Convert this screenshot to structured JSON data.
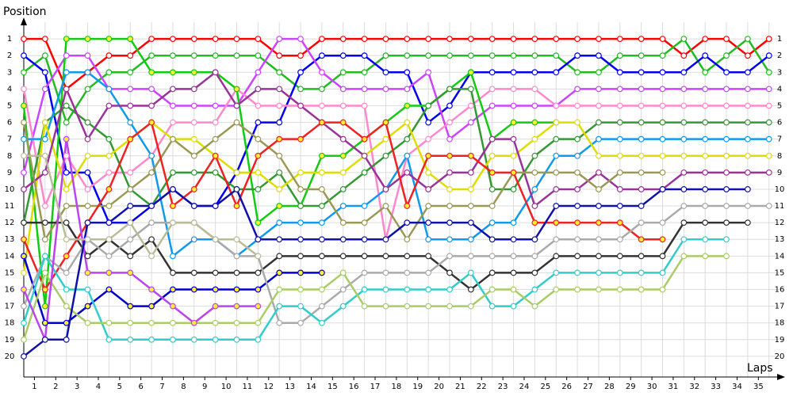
{
  "chart_data": {
    "type": "line",
    "y_label": "Position",
    "x_label": "Laps",
    "x": [
      0,
      1,
      2,
      3,
      4,
      5,
      6,
      7,
      8,
      9,
      10,
      11,
      12,
      13,
      14,
      15,
      16,
      17,
      18,
      19,
      20,
      21,
      22,
      23,
      24,
      25,
      26,
      27,
      28,
      29,
      30,
      31,
      32,
      33,
      34,
      35
    ],
    "xlim": [
      0,
      35.5
    ],
    "xticks": [
      {
        "value": 0.5,
        "label": "1"
      },
      {
        "value": 1.5,
        "label": "2"
      },
      {
        "value": 2.5,
        "label": "3"
      },
      {
        "value": 3.5,
        "label": "4"
      },
      {
        "value": 4.5,
        "label": "5"
      },
      {
        "value": 5.5,
        "label": "6"
      },
      {
        "value": 6.5,
        "label": "7"
      },
      {
        "value": 7.5,
        "label": "8"
      },
      {
        "value": 8.5,
        "label": "9"
      },
      {
        "value": 9.5,
        "label": "10"
      },
      {
        "value": 10.5,
        "label": "11"
      },
      {
        "value": 11.5,
        "label": "12"
      },
      {
        "value": 12.5,
        "label": "13"
      },
      {
        "value": 13.5,
        "label": "14"
      },
      {
        "value": 14.5,
        "label": "15"
      },
      {
        "value": 15.5,
        "label": "16"
      },
      {
        "value": 16.5,
        "label": "17"
      },
      {
        "value": 17.5,
        "label": "18"
      },
      {
        "value": 18.5,
        "label": "19"
      },
      {
        "value": 19.5,
        "label": "20"
      },
      {
        "value": 20.5,
        "label": "21"
      },
      {
        "value": 21.5,
        "label": "22"
      },
      {
        "value": 22.5,
        "label": "23"
      },
      {
        "value": 23.5,
        "label": "24"
      },
      {
        "value": 24.5,
        "label": "25"
      },
      {
        "value": 25.5,
        "label": "26"
      },
      {
        "value": 26.5,
        "label": "27"
      },
      {
        "value": 27.5,
        "label": "28"
      },
      {
        "value": 28.5,
        "label": "29"
      },
      {
        "value": 29.5,
        "label": "30"
      },
      {
        "value": 30.5,
        "label": "31"
      },
      {
        "value": 31.5,
        "label": "32"
      },
      {
        "value": 32.5,
        "label": "33"
      },
      {
        "value": 33.5,
        "label": "34"
      },
      {
        "value": 34.5,
        "label": "35"
      }
    ],
    "ylim": [
      21,
      0
    ],
    "yticks": [
      1,
      2,
      3,
      4,
      5,
      6,
      7,
      8,
      9,
      10,
      11,
      12,
      13,
      14,
      15,
      16,
      17,
      18,
      19,
      20
    ],
    "grid": true,
    "series": [
      {
        "color": "#ff0000",
        "marker_color": "#ffffff",
        "values": [
          1,
          1,
          4,
          3,
          2,
          2,
          1,
          1,
          1,
          1,
          1,
          1,
          2,
          2,
          1,
          1,
          1,
          1,
          1,
          1,
          1,
          1,
          1,
          1,
          1,
          1,
          1,
          1,
          1,
          1,
          1,
          2,
          1,
          1,
          2,
          1
        ]
      },
      {
        "color": "#22bb22",
        "marker_color": "#ffffff",
        "values": [
          3,
          2,
          6,
          4,
          3,
          3,
          2,
          2,
          2,
          2,
          2,
          2,
          3,
          4,
          4,
          3,
          3,
          2,
          2,
          2,
          2,
          2,
          2,
          2,
          2,
          2,
          3,
          3,
          2,
          2,
          2,
          1,
          3,
          2,
          1,
          3
        ]
      },
      {
        "color": "#0000ee",
        "marker_color": "#ffffff",
        "values": [
          2,
          3,
          9,
          9,
          12,
          12,
          11,
          10,
          11,
          11,
          9,
          6,
          6,
          3,
          2,
          2,
          2,
          3,
          3,
          6,
          5,
          3,
          3,
          3,
          3,
          3,
          2,
          2,
          3,
          3,
          3,
          3,
          2,
          3,
          3,
          2
        ]
      },
      {
        "color": "#cc44ff",
        "marker_color": "#ffffff",
        "values": [
          9,
          4,
          2,
          2,
          4,
          4,
          4,
          5,
          5,
          5,
          5,
          3,
          1,
          1,
          3,
          4,
          4,
          4,
          4,
          3,
          7,
          6,
          5,
          5,
          5,
          5,
          4,
          4,
          4,
          4,
          4,
          4,
          4,
          4,
          4,
          4
        ]
      },
      {
        "color": "#ff88cc",
        "marker_color": "#ffffff",
        "values": [
          4,
          11,
          8,
          10,
          9,
          9,
          8,
          6,
          6,
          6,
          4,
          5,
          5,
          5,
          5,
          5,
          5,
          13,
          8,
          7,
          6,
          5,
          4,
          4,
          4,
          5,
          5,
          5,
          5,
          5,
          5,
          5,
          5,
          5,
          5,
          5
        ]
      },
      {
        "color": "#11cc11",
        "marker_color": "#ffee33",
        "values": [
          5,
          17,
          1,
          1,
          1,
          1,
          3,
          3,
          3,
          3,
          4,
          12,
          11,
          11,
          8,
          8,
          7,
          6,
          5,
          5,
          4,
          3,
          7,
          6,
          6,
          6,
          null,
          null,
          null,
          null,
          null,
          null,
          null,
          null,
          null,
          null
        ]
      },
      {
        "color": "#339933",
        "marker_color": "#ffffff",
        "values": [
          12,
          6,
          5,
          6,
          7,
          10,
          11,
          9,
          9,
          9,
          10,
          10,
          9,
          11,
          11,
          10,
          9,
          8,
          7,
          5,
          4,
          4,
          10,
          10,
          8,
          7,
          7,
          6,
          6,
          6,
          6,
          6,
          6,
          6,
          6,
          6
        ]
      },
      {
        "color": "#1199ee",
        "marker_color": "#ffffff",
        "values": [
          7,
          7,
          3,
          3,
          4,
          6,
          8,
          14,
          13,
          13,
          14,
          13,
          12,
          12,
          12,
          11,
          11,
          10,
          8,
          13,
          13,
          13,
          12,
          12,
          10,
          8,
          8,
          7,
          7,
          7,
          7,
          7,
          7,
          7,
          7,
          7
        ]
      },
      {
        "color": "#dddd00",
        "marker_color": "#ffffff",
        "values": [
          15,
          6,
          10,
          8,
          8,
          7,
          6,
          7,
          7,
          8,
          9,
          9,
          10,
          9,
          9,
          9,
          8,
          7,
          6,
          9,
          10,
          10,
          8,
          8,
          7,
          6,
          6,
          8,
          8,
          8,
          8,
          8,
          8,
          8,
          8,
          8
        ]
      },
      {
        "color": "#993399",
        "marker_color": "#ffffff",
        "values": [
          10,
          9,
          4,
          7,
          5,
          5,
          5,
          4,
          4,
          3,
          5,
          4,
          4,
          5,
          6,
          7,
          8,
          10,
          9,
          10,
          9,
          9,
          7,
          7,
          11,
          10,
          10,
          9,
          10,
          10,
          10,
          9,
          9,
          9,
          9,
          9
        ]
      },
      {
        "color": "#999955",
        "marker_color": "#ffffff",
        "values": [
          6,
          13,
          11,
          11,
          11,
          10,
          9,
          7,
          8,
          7,
          6,
          7,
          8,
          10,
          10,
          12,
          12,
          11,
          13,
          11,
          11,
          11,
          11,
          9,
          9,
          9,
          9,
          10,
          9,
          9,
          9,
          null,
          null,
          null,
          null,
          null
        ]
      },
      {
        "color": "#ee2222",
        "marker_color": "#ffee33",
        "values": [
          13,
          16,
          14,
          12,
          10,
          7,
          6,
          11,
          10,
          8,
          11,
          8,
          7,
          7,
          6,
          6,
          7,
          6,
          11,
          8,
          8,
          8,
          9,
          9,
          12,
          12,
          12,
          12,
          12,
          13,
          13,
          null,
          null,
          null,
          null,
          null
        ]
      },
      {
        "color": "#0000cc",
        "marker_color": "#ffee33",
        "values": [
          14,
          18,
          18,
          17,
          16,
          17,
          17,
          16,
          16,
          16,
          16,
          16,
          15,
          15,
          15,
          null,
          null,
          null,
          null,
          null,
          null,
          null,
          null,
          null,
          null,
          null,
          null,
          null,
          null,
          null,
          null,
          null,
          null,
          null,
          null,
          null
        ]
      },
      {
        "color": "#333333",
        "marker_color": "#ffffff",
        "values": [
          12,
          12,
          12,
          14,
          13,
          14,
          13,
          15,
          15,
          15,
          15,
          15,
          14,
          14,
          14,
          14,
          14,
          14,
          14,
          14,
          15,
          16,
          15,
          15,
          15,
          14,
          14,
          14,
          14,
          14,
          14,
          12,
          12,
          12,
          12,
          null
        ]
      },
      {
        "color": "#aaaaaa",
        "marker_color": "#ffffff",
        "values": [
          17,
          14,
          15,
          13,
          14,
          13,
          12,
          12,
          12,
          13,
          14,
          14,
          18,
          18,
          17,
          16,
          15,
          15,
          15,
          15,
          14,
          14,
          14,
          14,
          14,
          13,
          13,
          13,
          13,
          12,
          12,
          11,
          11,
          11,
          11,
          11
        ]
      },
      {
        "color": "#33cccc",
        "marker_color": "#ffffff",
        "values": [
          18,
          14,
          16,
          16,
          19,
          19,
          19,
          19,
          19,
          19,
          19,
          19,
          17,
          17,
          18,
          17,
          16,
          16,
          16,
          16,
          16,
          15,
          17,
          17,
          16,
          15,
          15,
          15,
          15,
          15,
          15,
          13,
          13,
          13,
          null,
          null
        ]
      },
      {
        "color": "#aacc66",
        "marker_color": "#ffffff",
        "values": [
          19,
          15,
          17,
          18,
          18,
          18,
          18,
          18,
          18,
          18,
          18,
          18,
          16,
          16,
          16,
          15,
          17,
          17,
          17,
          17,
          17,
          17,
          16,
          16,
          17,
          16,
          16,
          16,
          16,
          16,
          16,
          14,
          14,
          14,
          null,
          null
        ]
      },
      {
        "color": "#bb44ee",
        "marker_color": "#ffee33",
        "values": [
          16,
          19,
          7,
          15,
          15,
          15,
          16,
          17,
          18,
          17,
          17,
          17,
          null,
          null,
          null,
          null,
          null,
          null,
          null,
          null,
          null,
          null,
          null,
          null,
          null,
          null,
          null,
          null,
          null,
          null,
          null,
          null,
          null,
          null,
          null,
          null
        ]
      },
      {
        "color": "#1111aa",
        "marker_color": "#ffffff",
        "values": [
          20,
          19,
          19,
          12,
          12,
          11,
          11,
          10,
          11,
          11,
          10,
          13,
          13,
          13,
          13,
          13,
          13,
          13,
          12,
          12,
          12,
          12,
          13,
          13,
          13,
          11,
          11,
          11,
          11,
          11,
          10,
          10,
          10,
          10,
          10,
          null
        ]
      },
      {
        "color": "#bbbb99",
        "marker_color": "#ffffff",
        "values": [
          8,
          8,
          13,
          13,
          13,
          12,
          14,
          12,
          12,
          13,
          13,
          14,
          null,
          null,
          null,
          null,
          null,
          null,
          null,
          null,
          null,
          null,
          null,
          null,
          null,
          null,
          null,
          null,
          null,
          null,
          null,
          null,
          null,
          null,
          null,
          null
        ]
      }
    ]
  }
}
